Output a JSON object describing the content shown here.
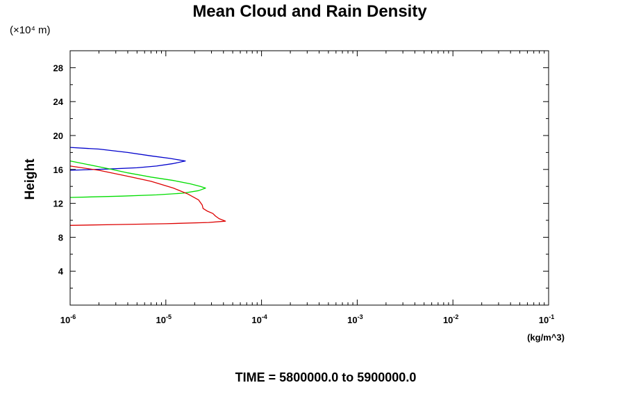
{
  "chart_data": {
    "type": "line",
    "title": "Mean Cloud and Rain Density",
    "ylabel": "Height",
    "y_scale_note": "(×10⁴ m)",
    "x_unit": "(kg/m^3)",
    "footer": "TIME = 5800000.0 to 5900000.0",
    "x_scale": "log",
    "xlim": [
      1e-06,
      0.1
    ],
    "ylim": [
      0,
      30
    ],
    "x_ticks": [
      {
        "base": "10",
        "exp": "-6",
        "value": 1e-06
      },
      {
        "base": "10",
        "exp": "-5",
        "value": 1e-05
      },
      {
        "base": "10",
        "exp": "-4",
        "value": 0.0001
      },
      {
        "base": "10",
        "exp": "-3",
        "value": 0.001
      },
      {
        "base": "10",
        "exp": "-2",
        "value": 0.01
      },
      {
        "base": "10",
        "exp": "-1",
        "value": 0.1
      }
    ],
    "y_ticks": [
      "4",
      "8",
      "12",
      "16",
      "20",
      "24",
      "28"
    ],
    "series": [
      {
        "color": "#0000cc",
        "points": [
          [
            1e-06,
            18.6
          ],
          [
            2e-06,
            18.4
          ],
          [
            4e-06,
            18.0
          ],
          [
            7e-06,
            17.6
          ],
          [
            1.1e-05,
            17.3
          ],
          [
            1.6e-05,
            17.0
          ],
          [
            1.2e-05,
            16.7
          ],
          [
            8e-06,
            16.4
          ],
          [
            5e-06,
            16.2
          ],
          [
            2.5e-06,
            16.05
          ],
          [
            1e-06,
            15.9
          ]
        ]
      },
      {
        "color": "#00dd00",
        "points": [
          [
            1e-06,
            17.0
          ],
          [
            1.5e-06,
            16.6
          ],
          [
            2.5e-06,
            16.1
          ],
          [
            4e-06,
            15.6
          ],
          [
            7e-06,
            15.1
          ],
          [
            1.2e-05,
            14.7
          ],
          [
            1.8e-05,
            14.3
          ],
          [
            2.3e-05,
            14.0
          ],
          [
            2.6e-05,
            13.8
          ],
          [
            2.2e-05,
            13.5
          ],
          [
            1.5e-05,
            13.2
          ],
          [
            8e-06,
            13.0
          ],
          [
            3.5e-06,
            12.85
          ],
          [
            1e-06,
            12.7
          ]
        ]
      },
      {
        "color": "#dd0000",
        "points": [
          [
            1e-06,
            16.4
          ],
          [
            2e-06,
            15.9
          ],
          [
            4e-06,
            15.2
          ],
          [
            7e-06,
            14.6
          ],
          [
            1.2e-05,
            13.8
          ],
          [
            1.7e-05,
            13.1
          ],
          [
            2.2e-05,
            12.4
          ],
          [
            2.4e-05,
            11.8
          ],
          [
            2.45e-05,
            11.4
          ],
          [
            2.7e-05,
            11.1
          ],
          [
            3.1e-05,
            10.8
          ],
          [
            3.3e-05,
            10.5
          ],
          [
            3.6e-05,
            10.2
          ],
          [
            4.2e-05,
            9.9
          ],
          [
            2.8e-05,
            9.75
          ],
          [
            1e-05,
            9.6
          ],
          [
            3e-06,
            9.5
          ],
          [
            1e-06,
            9.4
          ]
        ]
      }
    ]
  }
}
